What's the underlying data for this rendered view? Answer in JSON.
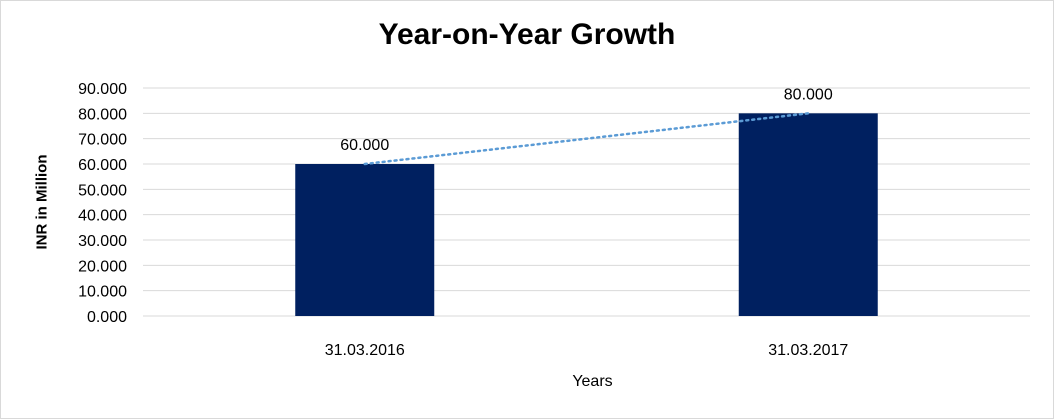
{
  "chart_data": {
    "type": "bar",
    "title": "Year-on-Year Growth",
    "xlabel": "Years",
    "ylabel": "INR in Million",
    "categories": [
      "31.03.2016",
      "31.03.2017"
    ],
    "values": [
      60,
      80
    ],
    "value_labels": [
      "60.000",
      "80.000"
    ],
    "ylim": [
      0,
      90
    ],
    "yticks": [
      "0.000",
      "10.000",
      "20.000",
      "30.000",
      "40.000",
      "50.000",
      "60.000",
      "70.000",
      "80.000",
      "90.000"
    ],
    "grid": true,
    "legend": "none",
    "trendline": "dotted linear",
    "colors": {
      "bar": "#002060",
      "trendline": "#5b9bd5",
      "grid": "#d9d9d9"
    }
  }
}
